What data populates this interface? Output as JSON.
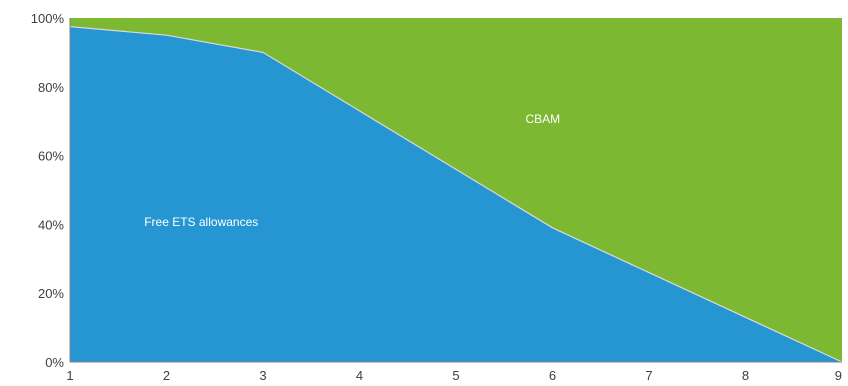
{
  "chart_data": {
    "type": "area",
    "stacked": "percent",
    "x": [
      1,
      2,
      3,
      4,
      5,
      6,
      7,
      8,
      9
    ],
    "series": [
      {
        "name": "Free ETS allowances",
        "color": "#2596d1",
        "values": [
          97.5,
          95,
          90,
          73,
          56,
          39,
          26,
          13,
          0
        ]
      },
      {
        "name": "CBAM",
        "color": "#7cb832",
        "values": [
          2.5,
          5,
          10,
          27,
          44,
          61,
          74,
          87,
          100
        ]
      }
    ],
    "xlim": [
      1,
      9
    ],
    "ylim": [
      0,
      100
    ],
    "y_ticks": [
      "0%",
      "20%",
      "40%",
      "60%",
      "80%",
      "100%"
    ],
    "x_ticks": [
      "1",
      "2",
      "3",
      "4",
      "5",
      "6",
      "7",
      "8",
      "9"
    ],
    "grid": false,
    "legend": "none",
    "title": "",
    "xlabel": "",
    "ylabel": ""
  }
}
